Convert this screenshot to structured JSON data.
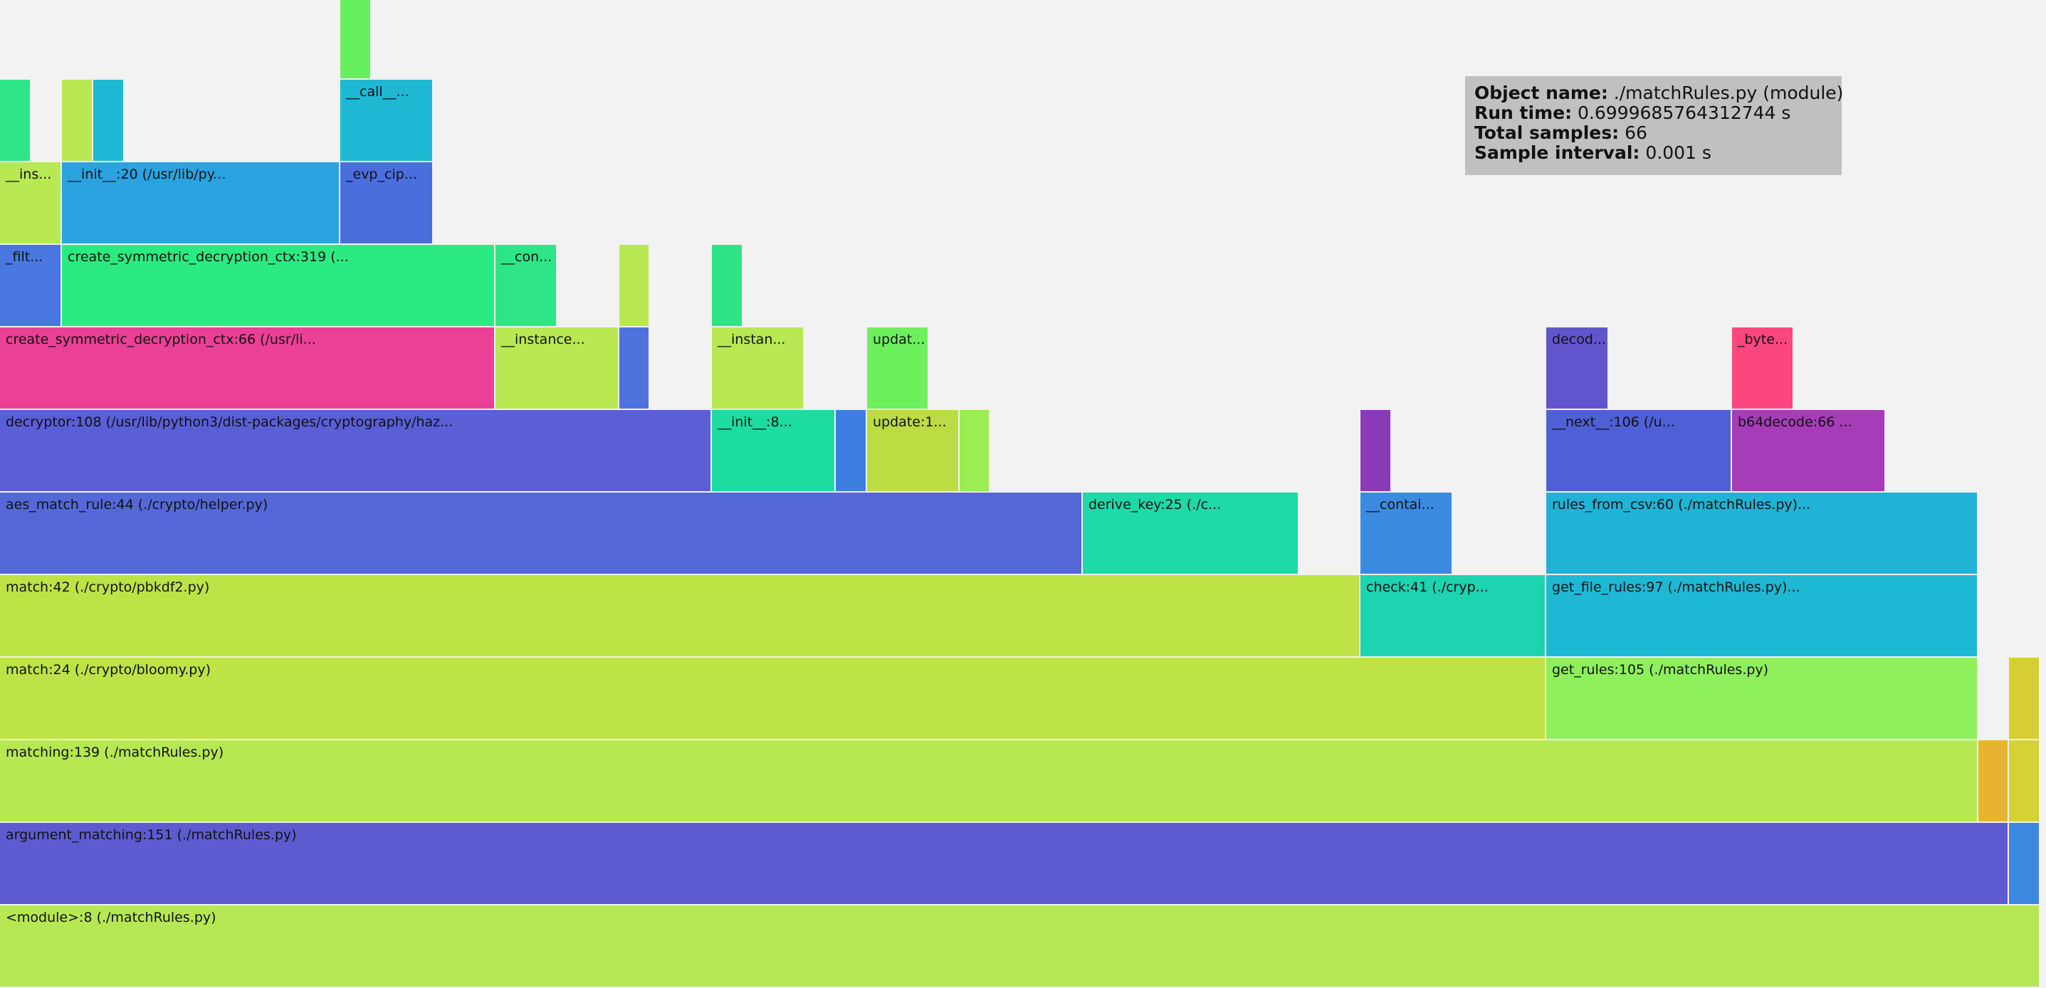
{
  "stats": {
    "object_name_label": "Object name:",
    "object_name": "./matchRules.py (module)",
    "run_time_label": "Run time:",
    "run_time": "0.6999685764312744 s",
    "total_samples_label": "Total samples:",
    "total_samples": "66",
    "sample_interval_label": "Sample interval:",
    "sample_interval": "0.001 s"
  },
  "frames": [
    {
      "label": "<module>:8 (./matchRules.py)",
      "color": "#b5e853"
    },
    {
      "label": "argument_matching:151 (./matchRules.py)",
      "color": "#5e5bd0"
    },
    {
      "label": "",
      "color": "#3d87e0"
    },
    {
      "label": "matching:139 (./matchRules.py)",
      "color": "#b6e852"
    },
    {
      "label": "",
      "color": "#e8b430"
    },
    {
      "label": "",
      "color": "#d4d234"
    },
    {
      "label": "match:24 (./crypto/bloomy.py)",
      "color": "#bde346"
    },
    {
      "label": "get_rules:105 (./matchRules.py)",
      "color": "#8ef05a"
    },
    {
      "label": "",
      "color": "#d6ce34"
    },
    {
      "label": "match:42 (./crypto/pbkdf2.py)",
      "color": "#bde346"
    },
    {
      "label": "check:41 (./cryp...",
      "color": "#1ed3b0"
    },
    {
      "label": "get_file_rules:97 (./matchRules.py)...",
      "color": "#1fb8d4"
    },
    {
      "label": "aes_match_rule:44 (./crypto/helper.py)",
      "color": "#5468d8"
    },
    {
      "label": "derive_key:25 (./c...",
      "color": "#1ed9a8"
    },
    {
      "label": "__contai...",
      "color": "#3a8be0"
    },
    {
      "label": "rules_from_csv:60 (./matchRules.py)...",
      "color": "#1fb3d6"
    },
    {
      "label": "decryptor:108 (/usr/lib/python3/dist-packages/cryptography/haz...",
      "color": "#5a5fd6"
    },
    {
      "label": "__init__:8...",
      "color": "#1ddca0"
    },
    {
      "label": "",
      "color": "#3d7fe0"
    },
    {
      "label": "update:1...",
      "color": "#bcdc44"
    },
    {
      "label": "",
      "color": "#9bee52"
    },
    {
      "label": "",
      "color": "#8a3ab8"
    },
    {
      "label": "__next__:106 (/u...",
      "color": "#4f60d6"
    },
    {
      "label": "b64decode:66 ...",
      "color": "#a63cb8"
    },
    {
      "label": "create_symmetric_decryption_ctx:66 (/usr/li...",
      "color": "#ea4096"
    },
    {
      "label": "__instance...",
      "color": "#b8e852"
    },
    {
      "label": "",
      "color": "#4e72dc"
    },
    {
      "label": "__instan...",
      "color": "#b8e852"
    },
    {
      "label": "updat...",
      "color": "#6cf05c"
    },
    {
      "label": "decod...",
      "color": "#6055cc"
    },
    {
      "label": "_byte...",
      "color": "#fc4680"
    },
    {
      "label": "_filt...",
      "color": "#4878e0"
    },
    {
      "label": "create_symmetric_decryption_ctx:319 (...",
      "color": "#2cea82"
    },
    {
      "label": "__con...",
      "color": "#2ee688"
    },
    {
      "label": "",
      "color": "#b8e852"
    },
    {
      "label": "",
      "color": "#2ee488"
    },
    {
      "label": "__ins...",
      "color": "#b8e852"
    },
    {
      "label": "__init__:20 (/usr/lib/py...",
      "color": "#2aa3e0"
    },
    {
      "label": "_evp_cip...",
      "color": "#4a6fdc"
    },
    {
      "label": "",
      "color": "#2ee688"
    },
    {
      "label": "",
      "color": "#b8e852"
    },
    {
      "label": "",
      "color": "#1fb8d4"
    },
    {
      "label": "__call__...",
      "color": "#1fb8d4"
    },
    {
      "label": "",
      "color": "#66f05e"
    }
  ]
}
